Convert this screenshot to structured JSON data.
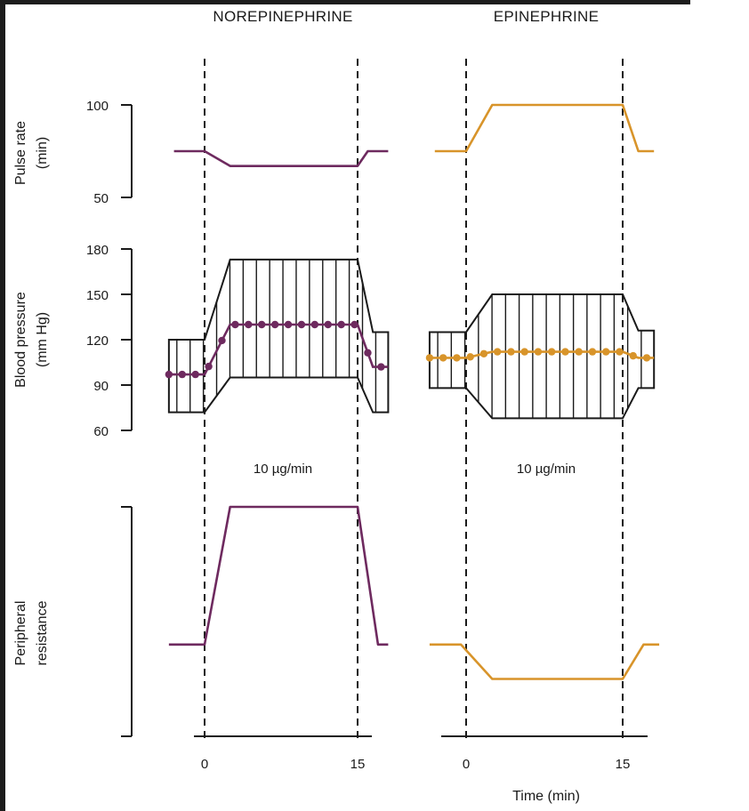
{
  "colors": {
    "norepinephrine": "#6e2a5f",
    "epinephrine": "#d8942a",
    "axis": "#1a1a1a"
  },
  "chart_data": {
    "type": "line",
    "titles": [
      "NOREPINEPHRINE",
      "EPINEPHRINE"
    ],
    "x_ticks": [
      "0",
      "15"
    ],
    "x_label": "Time (min)",
    "dose_label": "10 µg/min",
    "infusion_window": [
      0,
      15
    ],
    "pulse_rate": {
      "ylabel_lines": [
        "Pulse rate",
        "(min)"
      ],
      "y_ticks": [
        "100",
        "50"
      ],
      "ylim": [
        50,
        100
      ],
      "norepinephrine": {
        "t": [
          -3,
          0,
          2.5,
          15,
          16,
          18
        ],
        "v": [
          75,
          75,
          67,
          67,
          75,
          75
        ]
      },
      "epinephrine": {
        "t": [
          -3,
          0,
          2.5,
          15,
          16.5,
          18
        ],
        "v": [
          75,
          75,
          100,
          100,
          75,
          75
        ]
      }
    },
    "blood_pressure": {
      "ylabel_lines": [
        "Blood pressure",
        "(mm Hg)"
      ],
      "y_ticks": [
        "180",
        "150",
        "120",
        "90",
        "60"
      ],
      "ylim": [
        60,
        180
      ],
      "norepinephrine": {
        "t": [
          -3.5,
          0,
          2.5,
          15,
          16.5,
          18
        ],
        "systolic": [
          120,
          120,
          173,
          173,
          125,
          125
        ],
        "diastolic": [
          72,
          72,
          95,
          95,
          72,
          72
        ],
        "mean": [
          97,
          97,
          130,
          130,
          102,
          102
        ]
      },
      "epinephrine": {
        "t": [
          -3.5,
          0,
          2.5,
          15,
          16.5,
          18
        ],
        "systolic": [
          125,
          125,
          150,
          150,
          126,
          126
        ],
        "diastolic": [
          88,
          88,
          68,
          68,
          88,
          88
        ],
        "mean": [
          108,
          108,
          112,
          112,
          108,
          108
        ]
      }
    },
    "peripheral_resistance": {
      "ylabel_lines": [
        "Peripheral",
        "resistance"
      ],
      "norepinephrine": {
        "t": [
          -3.5,
          0,
          2.5,
          15,
          17,
          18
        ],
        "v": [
          0.4,
          0.4,
          1.0,
          1.0,
          0.4,
          0.4
        ]
      },
      "epinephrine": {
        "t": [
          -3.5,
          -0.5,
          2.5,
          15,
          17,
          18.5
        ],
        "v": [
          0.4,
          0.4,
          0.25,
          0.25,
          0.4,
          0.4
        ]
      }
    }
  }
}
